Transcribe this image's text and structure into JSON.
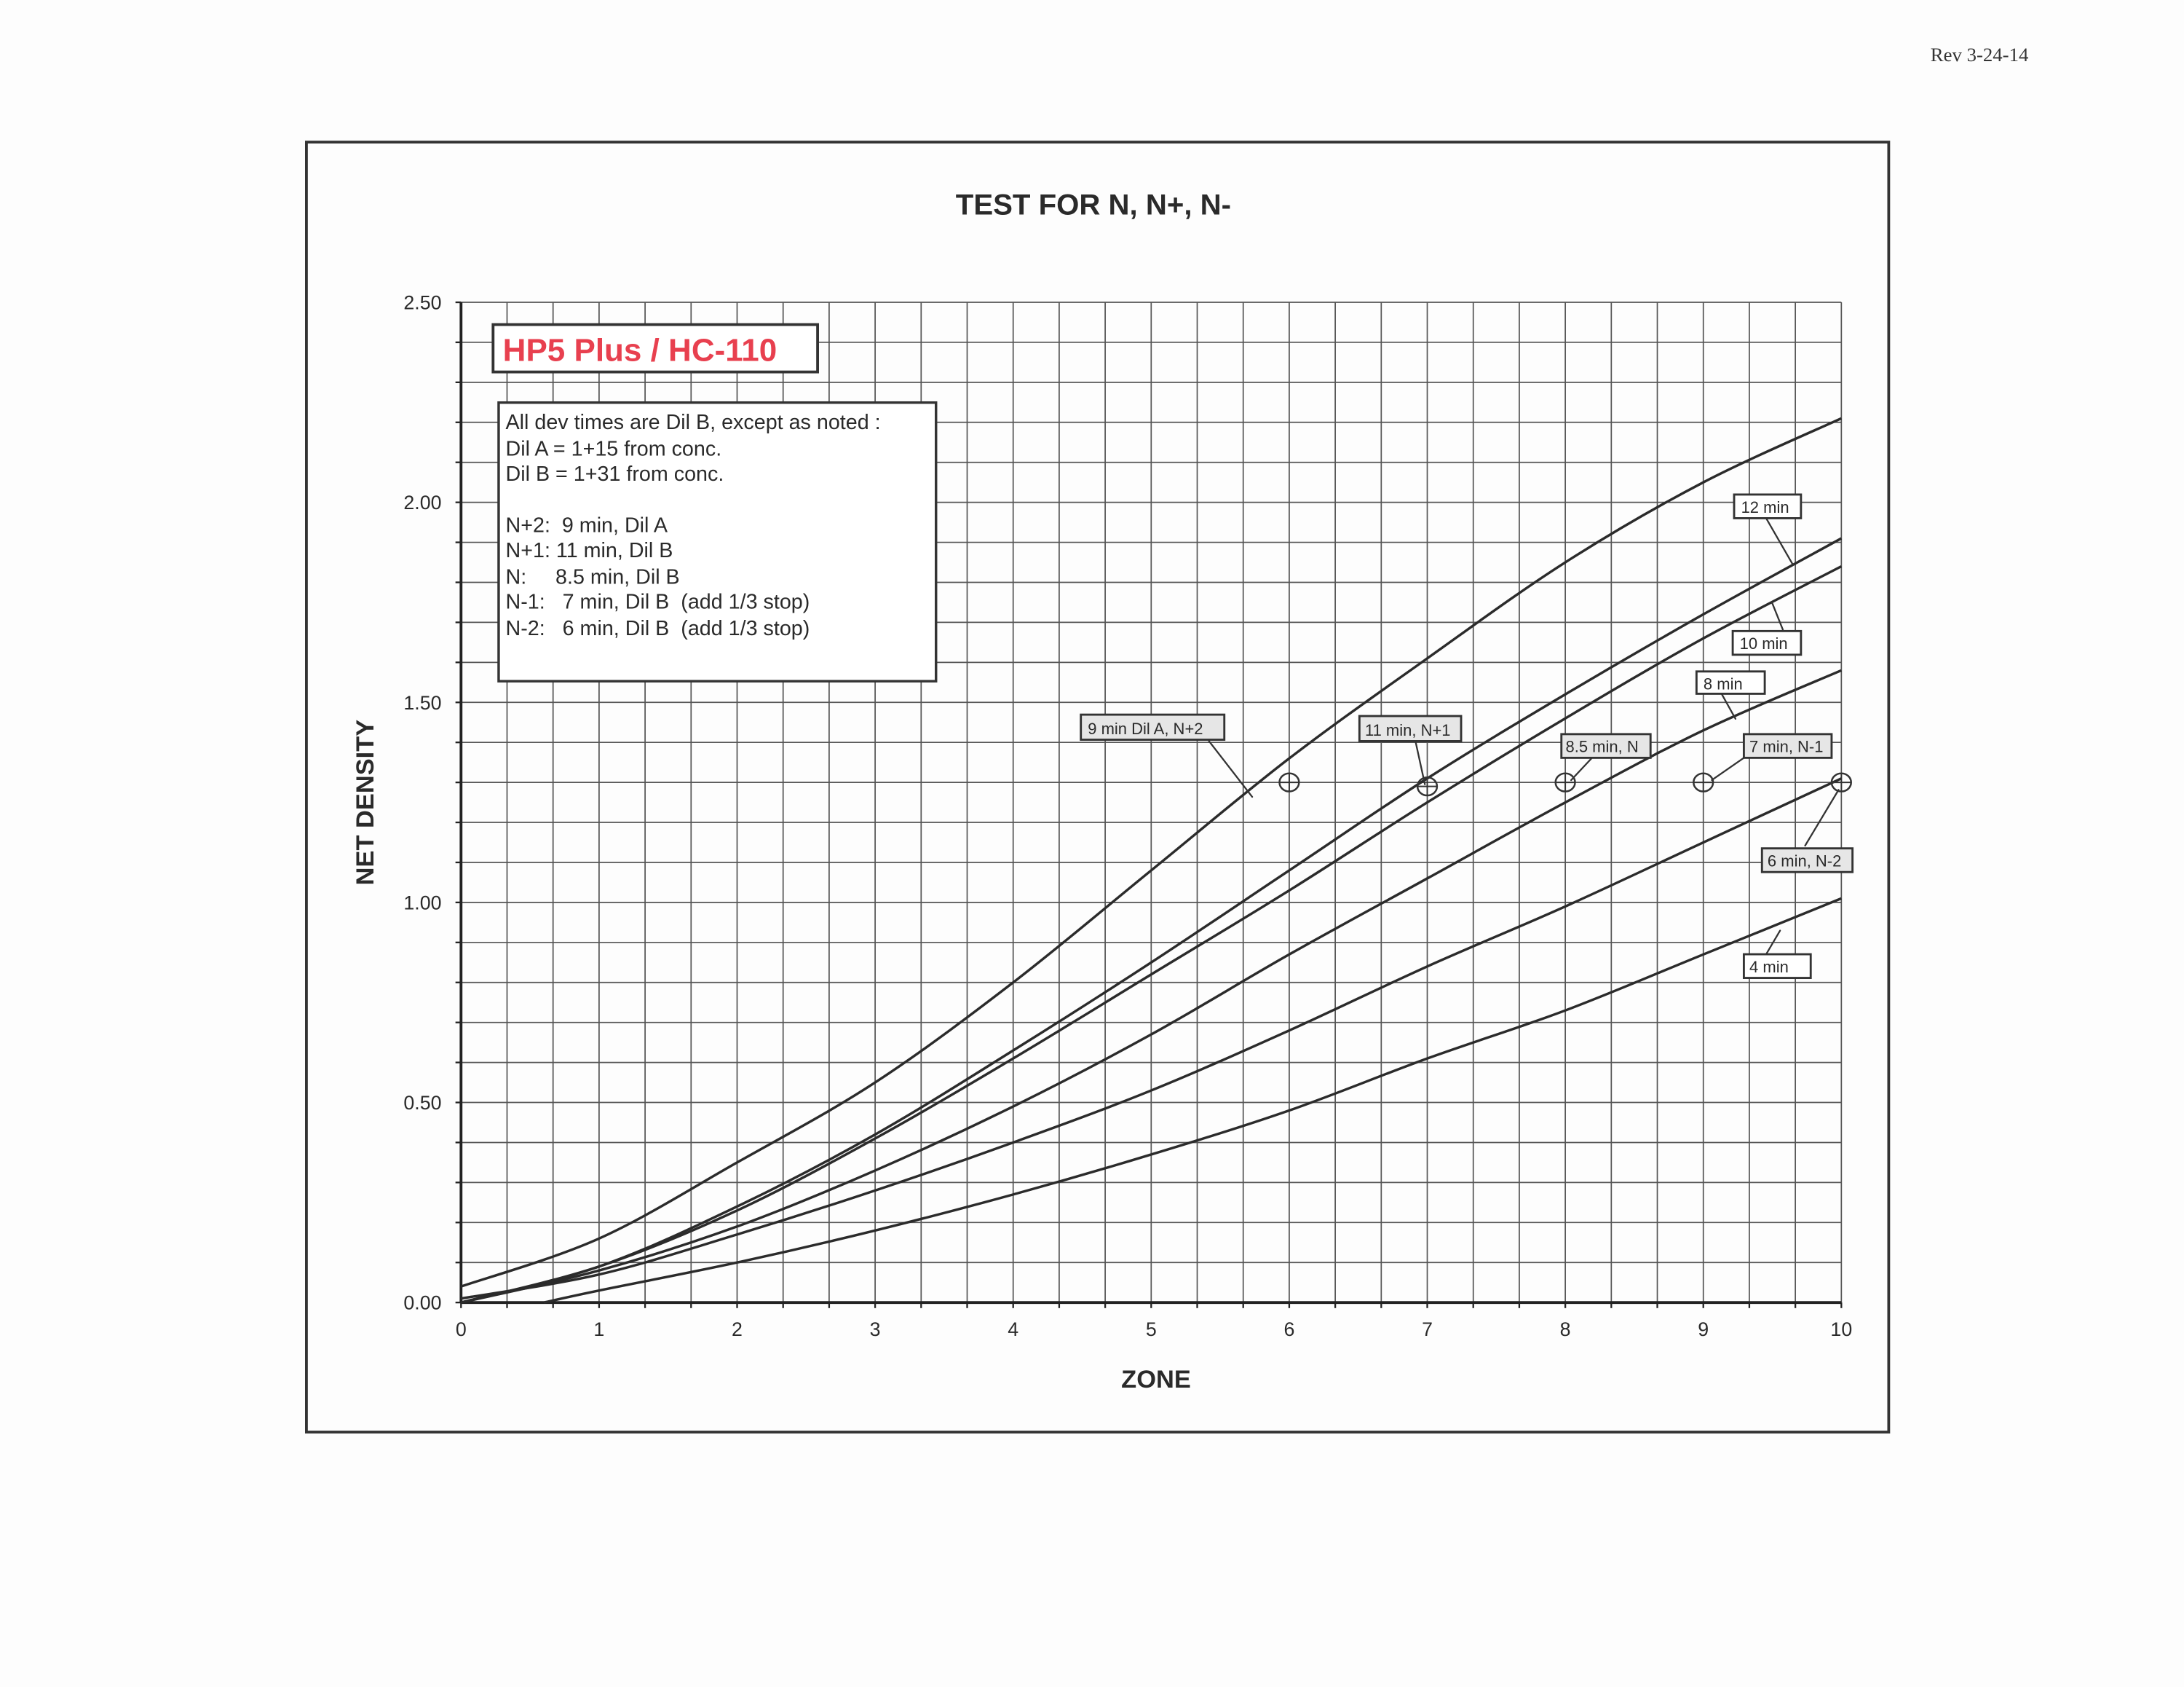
{
  "revision": "Rev 3-24-14",
  "chart_data": {
    "type": "line",
    "title": "TEST FOR N, N+, N-",
    "xlabel": "ZONE",
    "ylabel": "NET DENSITY",
    "xlim": [
      0,
      10
    ],
    "ylim": [
      0,
      2.5
    ],
    "x_ticks": [
      "0",
      "1",
      "2",
      "3",
      "4",
      "5",
      "6",
      "7",
      "8",
      "9",
      "10"
    ],
    "y_ticks": [
      "0.00",
      "0.50",
      "1.00",
      "1.50",
      "2.00",
      "2.50"
    ],
    "grid": true,
    "x": [
      0,
      1,
      2,
      3,
      4,
      5,
      6,
      7,
      8,
      9,
      10
    ],
    "series": [
      {
        "name": "9 min Dil A, N+2",
        "values": [
          0.04,
          0.16,
          0.35,
          0.55,
          0.8,
          1.08,
          1.36,
          1.61,
          1.85,
          2.05,
          2.21
        ]
      },
      {
        "name": "12 min",
        "values": [
          0.0,
          0.09,
          0.24,
          0.42,
          0.63,
          0.85,
          1.08,
          1.31,
          1.52,
          1.72,
          1.91
        ]
      },
      {
        "name": "10 min",
        "values": [
          0.0,
          0.09,
          0.23,
          0.41,
          0.61,
          0.82,
          1.03,
          1.25,
          1.46,
          1.66,
          1.84
        ]
      },
      {
        "name": "8 min",
        "values": [
          0.0,
          0.08,
          0.19,
          0.33,
          0.49,
          0.67,
          0.87,
          1.06,
          1.25,
          1.43,
          1.58
        ]
      },
      {
        "name": "6 min, N-2",
        "values": [
          0.01,
          0.07,
          0.17,
          0.28,
          0.4,
          0.53,
          0.68,
          0.84,
          0.99,
          1.15,
          1.31
        ]
      },
      {
        "name": "4 min",
        "values": [
          null,
          0.03,
          0.1,
          0.18,
          0.27,
          0.37,
          0.48,
          0.61,
          0.73,
          0.87,
          1.01
        ]
      }
    ],
    "series_x_start": {
      "4 min": 0.6
    },
    "target_points": [
      {
        "label": "9 min Dil A, N+2",
        "x": 6,
        "y": 1.3
      },
      {
        "label": "11 min, N+1",
        "x": 7,
        "y": 1.29
      },
      {
        "label": "8.5 min, N",
        "x": 8,
        "y": 1.3
      },
      {
        "label": "7 min, N-1",
        "x": 9,
        "y": 1.3
      },
      {
        "label": "6 min, N-2",
        "x": 10,
        "y": 1.3
      }
    ],
    "annotations": {
      "film": "HP5 Plus / HC-110",
      "film_color": "#e8404f",
      "notes": [
        "All dev times are Dil B, except as noted :",
        "Dil A = 1+15 from conc.",
        "Dil B = 1+31 from conc.",
        "N+2:  9 min, Dil A",
        "N+1: 11 min, Dil B",
        "N:     8.5 min, Dil B",
        "N-1:   7 min, Dil B  (add 1/3 stop)",
        "N-2:   6 min, Dil B  (add 1/3 stop)"
      ],
      "labels": [
        "9 min Dil A, N+2",
        "11 min, N+1",
        "8.5 min, N",
        "7 min, N-1",
        "6 min, N-2",
        "12 min",
        "10 min",
        "8 min",
        "4 min"
      ]
    }
  }
}
